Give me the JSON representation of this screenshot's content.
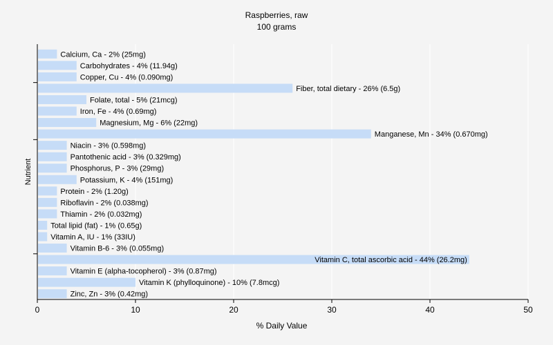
{
  "chart_data": {
    "type": "bar",
    "orientation": "horizontal",
    "title": "Raspberries, raw",
    "subtitle": "100 grams",
    "xlabel": "% Daily Value",
    "ylabel": "Nutrient",
    "xlim": [
      0,
      50
    ],
    "xticks": [
      "0",
      "10",
      "20",
      "30",
      "40",
      "50"
    ],
    "grid": true,
    "legend": "none",
    "colors": {
      "bar": "#c6dcf7",
      "background": "#f4f4f4",
      "grid": "#ffffff",
      "axis": "#000000"
    },
    "categories": [
      "Calcium, Ca - 2% (25mg)",
      "Carbohydrates - 4% (11.94g)",
      "Copper, Cu - 4% (0.090mg)",
      "Fiber, total dietary - 26% (6.5g)",
      "Folate, total - 5% (21mcg)",
      "Iron, Fe - 4% (0.69mg)",
      "Magnesium, Mg - 6% (22mg)",
      "Manganese, Mn - 34% (0.670mg)",
      "Niacin - 3% (0.598mg)",
      "Pantothenic acid - 3% (0.329mg)",
      "Phosphorus, P - 3% (29mg)",
      "Potassium, K - 4% (151mg)",
      "Protein - 2% (1.20g)",
      "Riboflavin - 2% (0.038mg)",
      "Thiamin - 2% (0.032mg)",
      "Total lipid (fat) - 1% (0.65g)",
      "Vitamin A, IU - 1% (33IU)",
      "Vitamin B-6 - 3% (0.055mg)",
      "Vitamin C, total ascorbic acid - 44% (26.2mg)",
      "Vitamin E (alpha-tocopherol) - 3% (0.87mg)",
      "Vitamin K (phylloquinone) - 10% (7.8mcg)",
      "Zinc, Zn - 3% (0.42mg)"
    ],
    "values": [
      2,
      4,
      4,
      26,
      5,
      4,
      6,
      34,
      3,
      3,
      3,
      4,
      2,
      2,
      2,
      1,
      1,
      3,
      44,
      3,
      10,
      3
    ]
  }
}
